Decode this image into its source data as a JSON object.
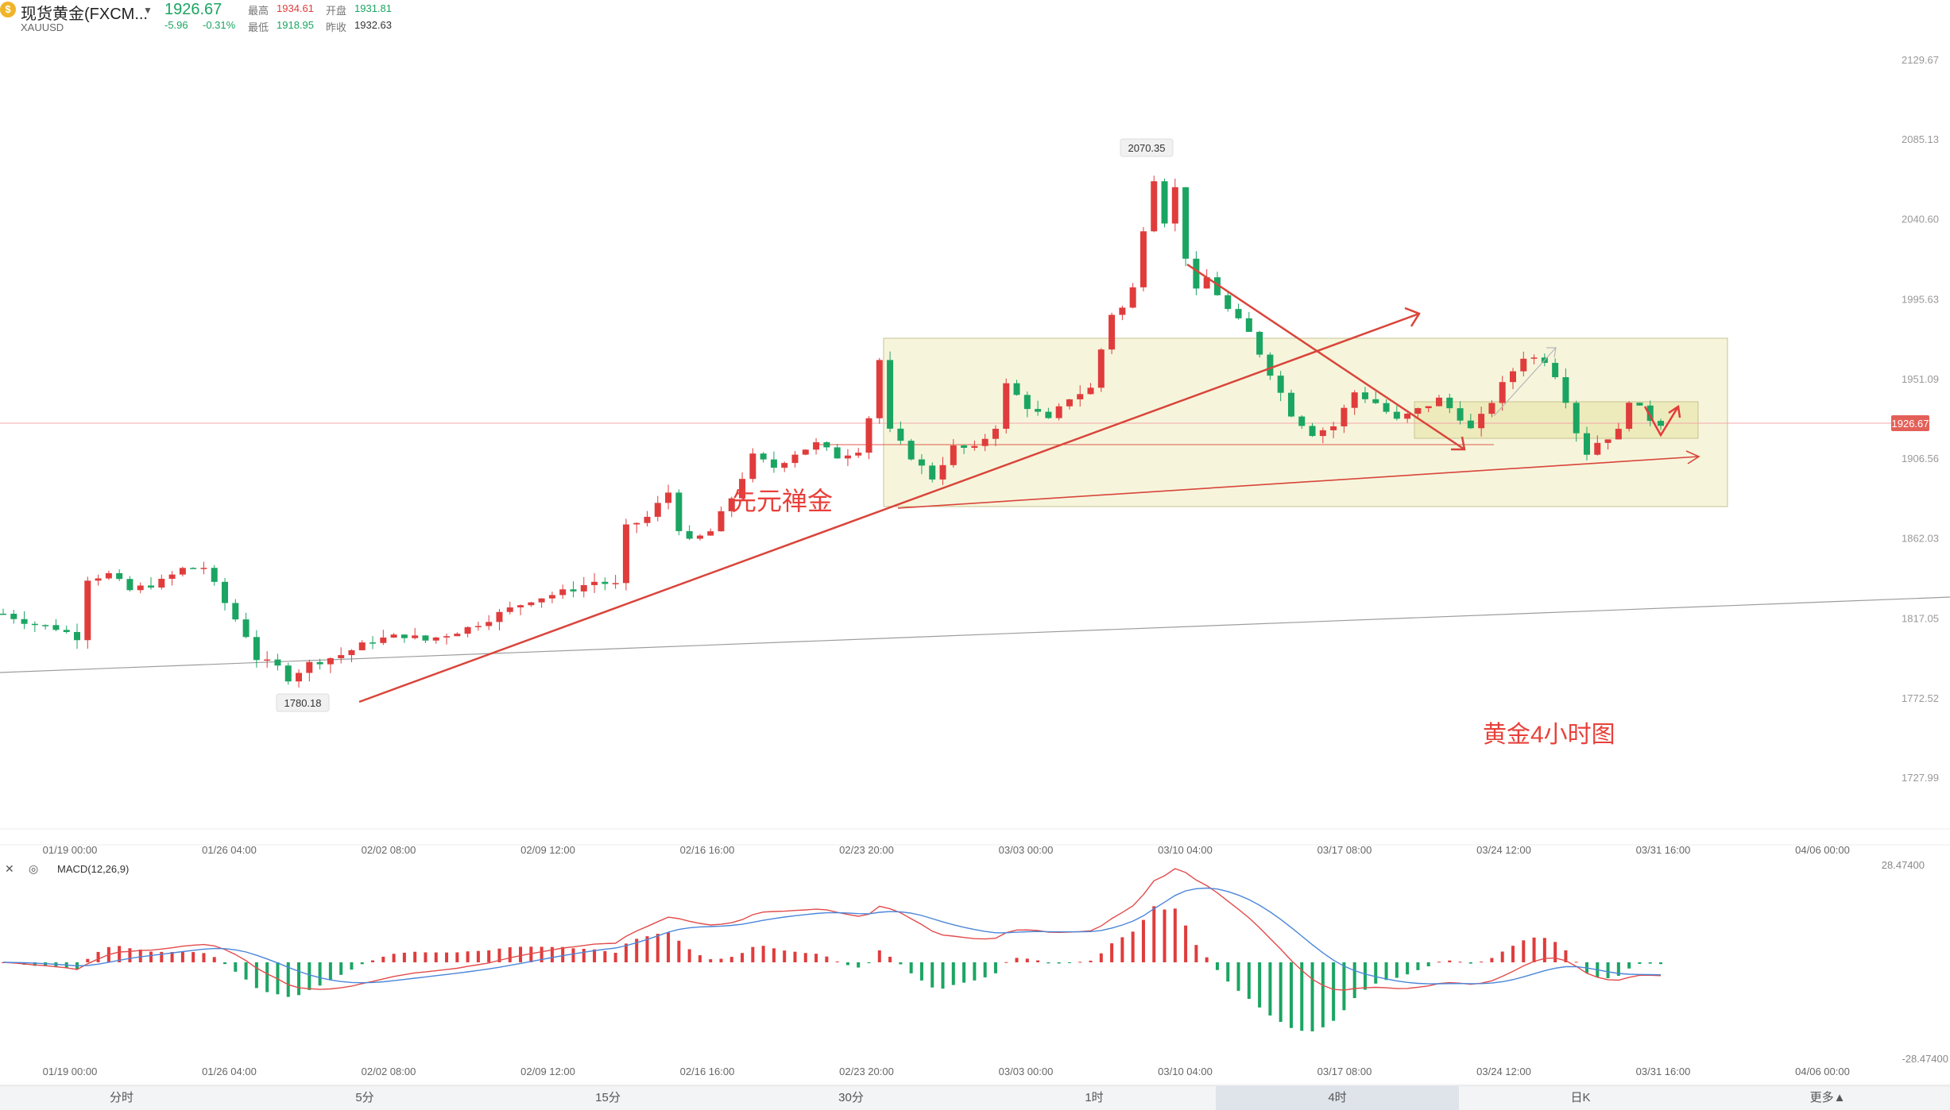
{
  "header": {
    "name": "现货黄金(FXCM...",
    "ticker": "XAUUSD",
    "price": "1926.67",
    "change": "-5.96",
    "change_pct": "-0.31%",
    "high_label": "最高",
    "high": "1934.61",
    "open_label": "开盘",
    "open": "1931.81",
    "low_label": "最低",
    "low": "1918.95",
    "prev_label": "昨收",
    "prev_close": "1932.63"
  },
  "chart_data": {
    "type": "candlestick",
    "price_axis": {
      "ticks": [
        "2129.67",
        "2085.13",
        "2040.60",
        "1995.63",
        "1951.09",
        "1906.56",
        "1862.03",
        "1817.05",
        "1772.52",
        "1727.99"
      ]
    },
    "price_range": [
      1727.99,
      2129.67
    ],
    "current_price": "1926.67",
    "time_axis": [
      "01/19 00:00",
      "01/26 04:00",
      "02/02 08:00",
      "02/09 12:00",
      "02/16 16:00",
      "02/23 20:00",
      "03/03 00:00",
      "03/10 04:00",
      "03/17 08:00",
      "03/24 12:00",
      "03/31 16:00",
      "04/06 00:00"
    ],
    "annotations": {
      "high_marker": "2070.35",
      "low_marker": "1780.18",
      "watermark": "先元禅金",
      "caption": "黄金4小时图"
    },
    "macd": {
      "label": "MACD(12,26,9)",
      "axis_top": "28.47400",
      "axis_bottom": "-28.47400"
    },
    "close_path": [
      {
        "t": 0,
        "p": 1820
      },
      {
        "t": 3,
        "p": 1814
      },
      {
        "t": 5,
        "p": 1812
      },
      {
        "t": 7,
        "p": 1807
      },
      {
        "t": 8,
        "p": 1840
      },
      {
        "t": 10,
        "p": 1842
      },
      {
        "t": 12,
        "p": 1833
      },
      {
        "t": 15,
        "p": 1838
      },
      {
        "t": 17,
        "p": 1845
      },
      {
        "t": 19,
        "p": 1846
      },
      {
        "t": 21,
        "p": 1826
      },
      {
        "t": 23,
        "p": 1808
      },
      {
        "t": 24,
        "p": 1795
      },
      {
        "t": 26,
        "p": 1790
      },
      {
        "t": 27,
        "p": 1784
      },
      {
        "t": 29,
        "p": 1792
      },
      {
        "t": 32,
        "p": 1797
      },
      {
        "t": 35,
        "p": 1805
      },
      {
        "t": 38,
        "p": 1808
      },
      {
        "t": 40,
        "p": 1805
      },
      {
        "t": 44,
        "p": 1812
      },
      {
        "t": 47,
        "p": 1820
      },
      {
        "t": 50,
        "p": 1828
      },
      {
        "t": 53,
        "p": 1832
      },
      {
        "t": 56,
        "p": 1838
      },
      {
        "t": 58,
        "p": 1836
      },
      {
        "t": 59,
        "p": 1868
      },
      {
        "t": 61,
        "p": 1874
      },
      {
        "t": 63,
        "p": 1888
      },
      {
        "t": 64,
        "p": 1868
      },
      {
        "t": 65,
        "p": 1860
      },
      {
        "t": 67,
        "p": 1866
      },
      {
        "t": 69,
        "p": 1885
      },
      {
        "t": 71,
        "p": 1908
      },
      {
        "t": 73,
        "p": 1902
      },
      {
        "t": 75,
        "p": 1910
      },
      {
        "t": 77,
        "p": 1915
      },
      {
        "t": 79,
        "p": 1908
      },
      {
        "t": 81,
        "p": 1912
      },
      {
        "t": 82,
        "p": 1930
      },
      {
        "t": 83,
        "p": 1962
      },
      {
        "t": 84,
        "p": 1922
      },
      {
        "t": 86,
        "p": 1908
      },
      {
        "t": 88,
        "p": 1896
      },
      {
        "t": 90,
        "p": 1913
      },
      {
        "t": 92,
        "p": 1912
      },
      {
        "t": 94,
        "p": 1925
      },
      {
        "t": 95,
        "p": 1948
      },
      {
        "t": 97,
        "p": 1936
      },
      {
        "t": 99,
        "p": 1928
      },
      {
        "t": 101,
        "p": 1941
      },
      {
        "t": 103,
        "p": 1946
      },
      {
        "t": 104,
        "p": 1968
      },
      {
        "t": 105,
        "p": 1988
      },
      {
        "t": 106,
        "p": 1991
      },
      {
        "t": 107,
        "p": 2002
      },
      {
        "t": 108,
        "p": 2036
      },
      {
        "t": 109,
        "p": 2064
      },
      {
        "t": 110,
        "p": 2040
      },
      {
        "t": 111,
        "p": 2058
      },
      {
        "t": 112,
        "p": 2020
      },
      {
        "t": 113,
        "p": 2000
      },
      {
        "t": 114,
        "p": 2008
      },
      {
        "t": 116,
        "p": 1990
      },
      {
        "t": 118,
        "p": 1977
      },
      {
        "t": 120,
        "p": 1955
      },
      {
        "t": 122,
        "p": 1932
      },
      {
        "t": 124,
        "p": 1921
      },
      {
        "t": 126,
        "p": 1925
      },
      {
        "t": 128,
        "p": 1944
      },
      {
        "t": 130,
        "p": 1938
      },
      {
        "t": 132,
        "p": 1928
      },
      {
        "t": 134,
        "p": 1934
      },
      {
        "t": 136,
        "p": 1940
      },
      {
        "t": 138,
        "p": 1930
      },
      {
        "t": 139,
        "p": 1923
      },
      {
        "t": 140,
        "p": 1930
      },
      {
        "t": 142,
        "p": 1948
      },
      {
        "t": 144,
        "p": 1964
      },
      {
        "t": 146,
        "p": 1962
      },
      {
        "t": 147,
        "p": 1954
      },
      {
        "t": 148,
        "p": 1940
      },
      {
        "t": 149,
        "p": 1922
      },
      {
        "t": 150,
        "p": 1910
      },
      {
        "t": 151,
        "p": 1916
      },
      {
        "t": 153,
        "p": 1922
      },
      {
        "t": 154,
        "p": 1940
      },
      {
        "t": 156,
        "p": 1929
      },
      {
        "t": 157,
        "p": 1926.67
      }
    ]
  },
  "tabs": [
    "分时",
    "5分",
    "15分",
    "30分",
    "1时",
    "4时",
    "日K",
    "更多▲"
  ],
  "active_tab": "4时",
  "colors": {
    "up": "#e03c3c",
    "down": "#1ba562",
    "box": "#e9e7b4",
    "trend": "#e05a4a"
  }
}
